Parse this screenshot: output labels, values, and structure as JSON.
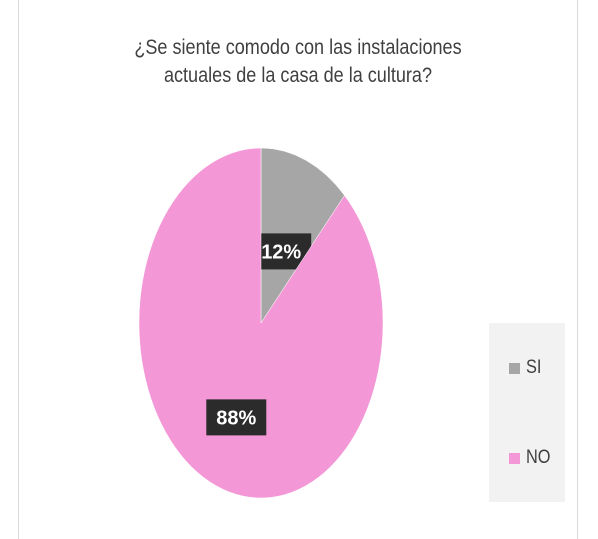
{
  "chart_data": {
    "type": "pie",
    "title": [
      "¿Se siente comodo con las instalaciones",
      "actuales de la casa de la cultura?"
    ],
    "categories": [
      "SI",
      "NO"
    ],
    "values": [
      12,
      88
    ],
    "labels": [
      "12%",
      "88%"
    ],
    "colors": [
      "#a6a6a6",
      "#f497d6"
    ],
    "legend_position": "right"
  }
}
